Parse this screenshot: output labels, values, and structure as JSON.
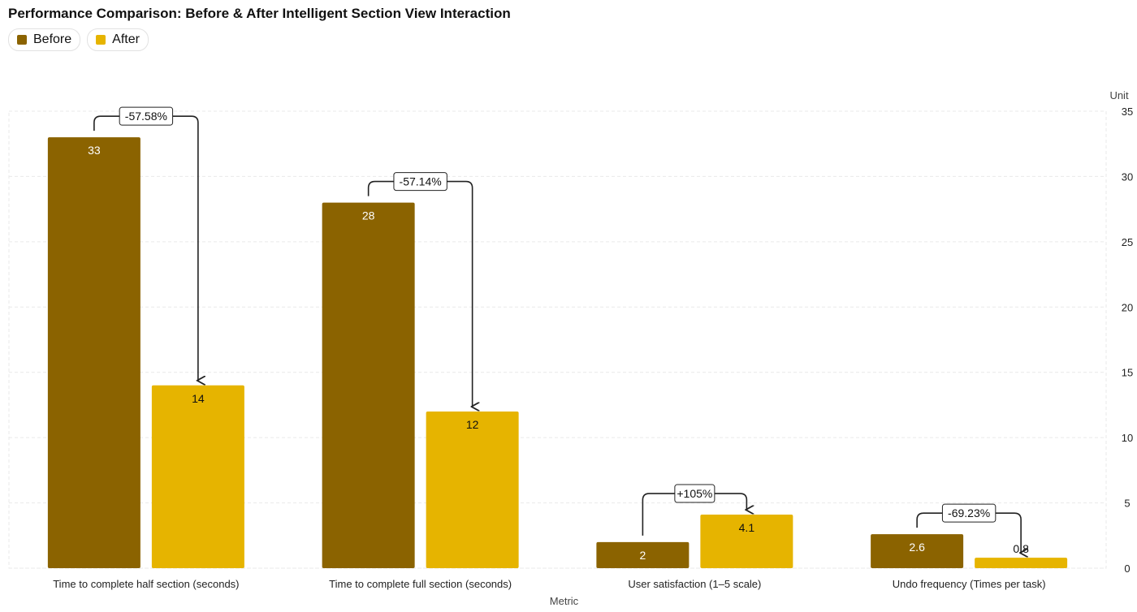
{
  "chart_data": {
    "type": "bar",
    "title": "Performance Comparison: Before & After Intelligent Section View Interaction",
    "xlabel": "Metric",
    "ylabel": "Unit",
    "ylim": [
      0,
      35
    ],
    "yticks": [
      0,
      5,
      10,
      15,
      20,
      25,
      30,
      35
    ],
    "grid": true,
    "legend_position": "top-left",
    "categories": [
      "Time to complete half section (seconds)",
      "Time to complete full section (seconds)",
      "User satisfaction (1–5 scale)",
      "Undo frequency (Times per task)"
    ],
    "series": [
      {
        "name": "Before",
        "color": "#8b6300",
        "values": [
          33,
          28,
          2,
          2.6
        ],
        "labels": [
          "33",
          "28",
          "2",
          "2.6"
        ]
      },
      {
        "name": "After",
        "color": "#e6b400",
        "values": [
          14,
          12,
          4.1,
          0.8
        ],
        "labels": [
          "14",
          "12",
          "4.1",
          "0.8"
        ]
      }
    ],
    "annotations": [
      "-57.58%",
      "-57.14%",
      "+105%",
      "-69.23%"
    ]
  }
}
